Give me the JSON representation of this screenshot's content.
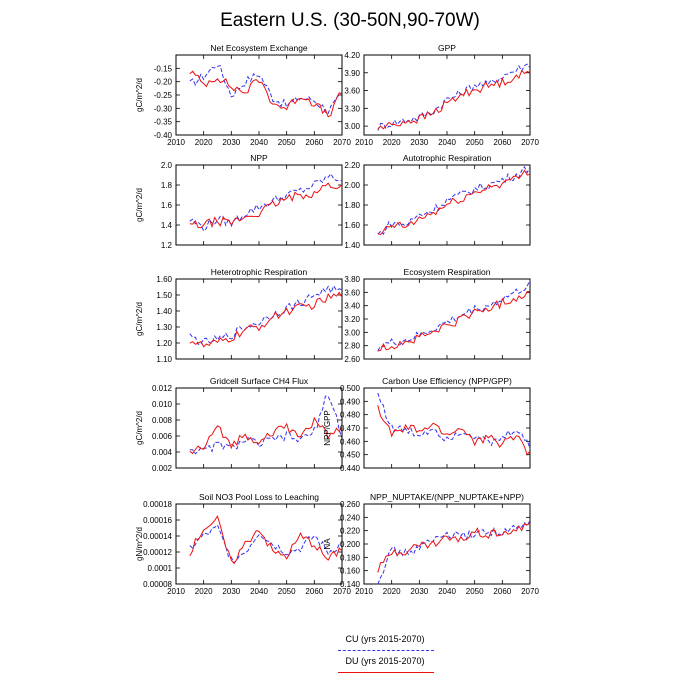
{
  "title": "Eastern U.S. (30-50N,90-70W)",
  "legend": {
    "cu": {
      "label": "CU (yrs 2015-2070)",
      "color": "#3333ee",
      "style": "dashed"
    },
    "du": {
      "label": "DU (yrs 2015-2070)",
      "color": "#ee1111",
      "style": "solid"
    }
  },
  "chart_data": [
    {
      "type": "line",
      "title": "Net Ecosystem Exchange",
      "ylabel": "gC/m^2/d",
      "ylim": [
        -0.4,
        -0.1
      ],
      "yticks": [
        "-0.40",
        "-0.35",
        "-0.30",
        "-0.25",
        "-0.20",
        "-0.15"
      ],
      "ytick_values": [
        -0.4,
        -0.35,
        -0.3,
        -0.25,
        -0.2,
        -0.15
      ],
      "xticks": [
        "2010",
        "2020",
        "2030",
        "2040",
        "2050",
        "2060",
        "2070"
      ],
      "xlim": [
        2010,
        2070
      ],
      "show_xticks": true,
      "x": [
        2015,
        2020,
        2025,
        2030,
        2035,
        2040,
        2045,
        2050,
        2055,
        2060,
        2065,
        2070
      ],
      "series": [
        {
          "name": "CU",
          "values": [
            -0.21,
            -0.18,
            -0.13,
            -0.25,
            -0.2,
            -0.17,
            -0.26,
            -0.29,
            -0.26,
            -0.27,
            -0.31,
            -0.25
          ]
        },
        {
          "name": "DU",
          "values": [
            -0.16,
            -0.21,
            -0.18,
            -0.22,
            -0.24,
            -0.19,
            -0.28,
            -0.3,
            -0.25,
            -0.28,
            -0.33,
            -0.24
          ]
        }
      ]
    },
    {
      "type": "line",
      "title": "GPP",
      "ylabel": "",
      "ylim": [
        2.85,
        4.2
      ],
      "yticks": [
        "3.00",
        "3.30",
        "3.60",
        "3.90",
        "4.20"
      ],
      "ytick_values": [
        3.0,
        3.3,
        3.6,
        3.9,
        4.2
      ],
      "xticks": [
        "2010",
        "2020",
        "2030",
        "2040",
        "2050",
        "2060",
        "2070"
      ],
      "xlim": [
        2010,
        2070
      ],
      "show_xticks": true,
      "x": [
        2015,
        2020,
        2025,
        2030,
        2035,
        2040,
        2045,
        2050,
        2055,
        2060,
        2065,
        2070
      ],
      "series": [
        {
          "name": "CU",
          "values": [
            2.98,
            3.05,
            3.1,
            3.15,
            3.25,
            3.45,
            3.55,
            3.7,
            3.7,
            3.85,
            3.95,
            4.05
          ]
        },
        {
          "name": "DU",
          "values": [
            2.96,
            3.02,
            3.08,
            3.12,
            3.22,
            3.38,
            3.52,
            3.62,
            3.68,
            3.74,
            3.85,
            3.9
          ]
        }
      ]
    },
    {
      "type": "line",
      "title": "NPP",
      "ylabel": "gC/m^2/d",
      "ylim": [
        1.2,
        2.0
      ],
      "yticks": [
        "1.2",
        "1.4",
        "1.6",
        "1.8",
        "2.0"
      ],
      "ytick_values": [
        1.2,
        1.4,
        1.6,
        1.8,
        2.0
      ],
      "xticks": [
        "2010",
        "2020",
        "2030",
        "2040",
        "2050",
        "2060",
        "2070"
      ],
      "xlim": [
        2010,
        2070
      ],
      "show_xticks": false,
      "x": [
        2015,
        2020,
        2025,
        2030,
        2035,
        2040,
        2045,
        2050,
        2055,
        2060,
        2065,
        2070
      ],
      "series": [
        {
          "name": "CU",
          "values": [
            1.45,
            1.38,
            1.46,
            1.42,
            1.52,
            1.58,
            1.64,
            1.7,
            1.74,
            1.8,
            1.88,
            1.86
          ]
        },
        {
          "name": "DU",
          "values": [
            1.4,
            1.4,
            1.44,
            1.42,
            1.48,
            1.52,
            1.6,
            1.66,
            1.7,
            1.72,
            1.8,
            1.78
          ]
        }
      ]
    },
    {
      "type": "line",
      "title": "Autotrophic Respiration",
      "ylabel": "",
      "ylim": [
        1.4,
        2.2
      ],
      "yticks": [
        "1.40",
        "1.60",
        "1.80",
        "2.00",
        "2.20"
      ],
      "ytick_values": [
        1.4,
        1.6,
        1.8,
        2.0,
        2.2
      ],
      "xticks": [
        "2010",
        "2020",
        "2030",
        "2040",
        "2050",
        "2060",
        "2070"
      ],
      "xlim": [
        2010,
        2070
      ],
      "show_xticks": false,
      "x": [
        2015,
        2020,
        2025,
        2030,
        2035,
        2040,
        2045,
        2050,
        2055,
        2060,
        2065,
        2070
      ],
      "series": [
        {
          "name": "CU",
          "values": [
            1.5,
            1.62,
            1.6,
            1.7,
            1.75,
            1.85,
            1.9,
            1.96,
            2.0,
            2.05,
            2.1,
            2.18
          ]
        },
        {
          "name": "DU",
          "values": [
            1.48,
            1.6,
            1.58,
            1.66,
            1.72,
            1.8,
            1.86,
            1.92,
            1.98,
            2.02,
            2.06,
            2.15
          ]
        }
      ]
    },
    {
      "type": "line",
      "title": "Heterotrophic Respiration",
      "ylabel": "gC/m^2/d",
      "ylim": [
        1.1,
        1.6
      ],
      "yticks": [
        "1.10",
        "1.20",
        "1.30",
        "1.40",
        "1.50",
        "1.60"
      ],
      "ytick_values": [
        1.1,
        1.2,
        1.3,
        1.4,
        1.5,
        1.6
      ],
      "xticks": [
        "2010",
        "2020",
        "2030",
        "2040",
        "2050",
        "2060",
        "2070"
      ],
      "xlim": [
        2010,
        2070
      ],
      "show_xticks": false,
      "x": [
        2015,
        2020,
        2025,
        2030,
        2035,
        2040,
        2045,
        2050,
        2055,
        2060,
        2065,
        2070
      ],
      "series": [
        {
          "name": "CU",
          "values": [
            1.24,
            1.2,
            1.22,
            1.25,
            1.3,
            1.33,
            1.38,
            1.42,
            1.45,
            1.5,
            1.54,
            1.52
          ]
        },
        {
          "name": "DU",
          "values": [
            1.22,
            1.18,
            1.2,
            1.23,
            1.28,
            1.3,
            1.36,
            1.4,
            1.42,
            1.44,
            1.48,
            1.5
          ]
        }
      ]
    },
    {
      "type": "line",
      "title": "Ecosystem Respiration",
      "ylabel": "",
      "ylim": [
        2.6,
        3.8
      ],
      "yticks": [
        "2.60",
        "2.80",
        "3.00",
        "3.20",
        "3.40",
        "3.60",
        "3.80"
      ],
      "ytick_values": [
        2.6,
        2.8,
        3.0,
        3.2,
        3.4,
        3.6,
        3.8
      ],
      "xticks": [
        "2010",
        "2020",
        "2030",
        "2040",
        "2050",
        "2060",
        "2070"
      ],
      "xlim": [
        2010,
        2070
      ],
      "show_xticks": false,
      "x": [
        2015,
        2020,
        2025,
        2030,
        2035,
        2040,
        2045,
        2050,
        2055,
        2060,
        2065,
        2070
      ],
      "series": [
        {
          "name": "CU",
          "values": [
            2.78,
            2.84,
            2.88,
            2.95,
            3.05,
            3.15,
            3.25,
            3.35,
            3.4,
            3.5,
            3.6,
            3.72
          ]
        },
        {
          "name": "DU",
          "values": [
            2.74,
            2.8,
            2.85,
            2.92,
            3.0,
            3.1,
            3.2,
            3.3,
            3.36,
            3.44,
            3.52,
            3.62
          ]
        }
      ]
    },
    {
      "type": "line",
      "title": "Gridcell Surface CH4 Flux",
      "ylabel": "gC/m^2/d",
      "ylim": [
        0.002,
        0.012
      ],
      "yticks": [
        "0.002",
        "0.004",
        "0.006",
        "0.008",
        "0.010",
        "0.012"
      ],
      "ytick_values": [
        0.002,
        0.004,
        0.006,
        0.008,
        0.01,
        0.012
      ],
      "xticks": [
        "2010",
        "2020",
        "2030",
        "2040",
        "2050",
        "2060",
        "2070"
      ],
      "xlim": [
        2010,
        2070
      ],
      "show_xticks": false,
      "x": [
        2015,
        2020,
        2025,
        2030,
        2035,
        2040,
        2045,
        2050,
        2055,
        2060,
        2065,
        2070
      ],
      "series": [
        {
          "name": "CU",
          "values": [
            0.0045,
            0.004,
            0.005,
            0.0045,
            0.0055,
            0.005,
            0.0055,
            0.006,
            0.0055,
            0.0065,
            0.0115,
            0.006
          ]
        },
        {
          "name": "DU",
          "values": [
            0.004,
            0.0045,
            0.007,
            0.005,
            0.006,
            0.0055,
            0.0065,
            0.007,
            0.006,
            0.008,
            0.006,
            0.007
          ]
        }
      ]
    },
    {
      "type": "line",
      "title": "Carbon Use Efficiency (NPP/GPP)",
      "ylabel": "NPP/GPP",
      "ylim": [
        0.44,
        0.5
      ],
      "yticks": [
        "0.440",
        "0.450",
        "0.460",
        "0.470",
        "0.480",
        "0.490",
        "0.500"
      ],
      "ytick_values": [
        0.44,
        0.45,
        0.46,
        0.47,
        0.48,
        0.49,
        0.5
      ],
      "xticks": [
        "2010",
        "2020",
        "2030",
        "2040",
        "2050",
        "2060",
        "2070"
      ],
      "xlim": [
        2010,
        2070
      ],
      "show_xticks": false,
      "x": [
        2015,
        2020,
        2025,
        2030,
        2035,
        2040,
        2045,
        2050,
        2055,
        2060,
        2065,
        2070
      ],
      "series": [
        {
          "name": "CU",
          "values": [
            0.496,
            0.47,
            0.468,
            0.465,
            0.47,
            0.462,
            0.468,
            0.465,
            0.458,
            0.462,
            0.47,
            0.455
          ]
        },
        {
          "name": "DU",
          "values": [
            0.485,
            0.465,
            0.47,
            0.468,
            0.472,
            0.465,
            0.47,
            0.46,
            0.462,
            0.458,
            0.465,
            0.45
          ]
        }
      ]
    },
    {
      "type": "line",
      "title": "Soil NO3 Pool Loss to Leaching",
      "ylabel": "gN/m^2/d",
      "ylim": [
        8e-05,
        0.00018
      ],
      "yticks": [
        "0.00008",
        "0.0001",
        "0.00012",
        "0.00014",
        "0.00016",
        "0.00018"
      ],
      "ytick_values": [
        8e-05,
        0.0001,
        0.00012,
        0.00014,
        0.00016,
        0.00018
      ],
      "xticks": [
        "2010",
        "2020",
        "2030",
        "2040",
        "2050",
        "2060",
        "2070"
      ],
      "xlim": [
        2010,
        2070
      ],
      "show_xticks": true,
      "x": [
        2015,
        2020,
        2025,
        2030,
        2035,
        2040,
        2045,
        2050,
        2055,
        2060,
        2065,
        2070
      ],
      "series": [
        {
          "name": "CU",
          "values": [
            0.000125,
            0.00014,
            0.00015,
            0.00011,
            0.00012,
            0.000145,
            0.00013,
            0.00012,
            0.000125,
            0.00014,
            0.00012,
            0.00013
          ]
        },
        {
          "name": "DU",
          "values": [
            0.00012,
            0.00015,
            0.00016,
            0.000105,
            0.00013,
            0.00015,
            0.00012,
            0.000115,
            0.00014,
            0.00013,
            0.00011,
            0.000125
          ]
        }
      ]
    },
    {
      "type": "line",
      "title": "NPP_NUPTAKE/(NPP_NUPTAKE+NPP)",
      "ylabel": "NA",
      "ylim": [
        0.14,
        0.26
      ],
      "yticks": [
        "0.140",
        "0.160",
        "0.180",
        "0.200",
        "0.220",
        "0.240",
        "0.260"
      ],
      "ytick_values": [
        0.14,
        0.16,
        0.18,
        0.2,
        0.22,
        0.24,
        0.26
      ],
      "xticks": [
        "2010",
        "2020",
        "2030",
        "2040",
        "2050",
        "2060",
        "2070"
      ],
      "xlim": [
        2010,
        2070
      ],
      "show_xticks": true,
      "x": [
        2015,
        2020,
        2025,
        2030,
        2035,
        2040,
        2045,
        2050,
        2055,
        2060,
        2065,
        2070
      ],
      "series": [
        {
          "name": "CU",
          "values": [
            0.146,
            0.19,
            0.186,
            0.195,
            0.205,
            0.215,
            0.21,
            0.215,
            0.22,
            0.215,
            0.225,
            0.23
          ]
        },
        {
          "name": "DU",
          "values": [
            0.16,
            0.188,
            0.19,
            0.198,
            0.2,
            0.21,
            0.205,
            0.22,
            0.215,
            0.22,
            0.218,
            0.232
          ]
        }
      ]
    }
  ]
}
